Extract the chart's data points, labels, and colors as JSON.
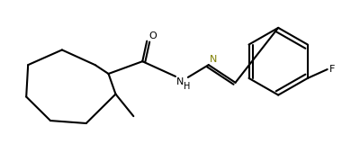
{
  "bg_color": "#ffffff",
  "line_color": "#000000",
  "line_color_olive": "#7f7f00",
  "line_width": 1.5,
  "fig_width": 3.9,
  "fig_height": 1.6,
  "dpi": 100,
  "text_fontsize": 8,
  "xlim": [
    0,
    390
  ],
  "ylim": [
    0,
    160
  ]
}
